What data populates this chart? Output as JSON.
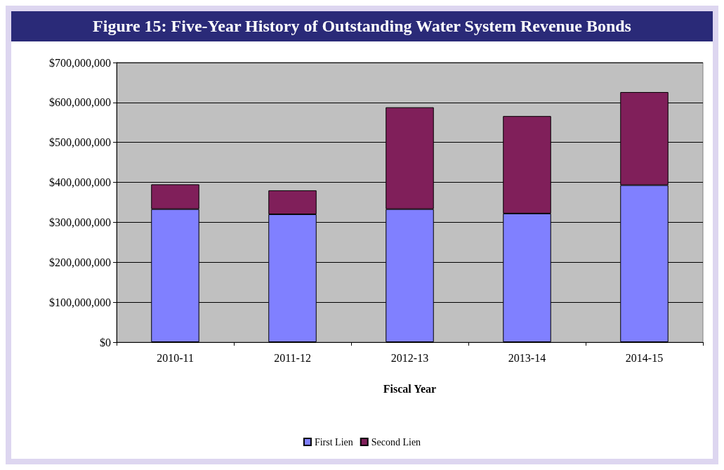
{
  "chart_data": {
    "type": "bar",
    "title": "Figure 15: Five-Year History of Outstanding Water System Revenue Bonds",
    "xlabel": "Fiscal Year",
    "categories": [
      "2010-11",
      "2011-12",
      "2012-13",
      "2013-14",
      "2014-15"
    ],
    "stacked": true,
    "series": [
      {
        "name": "First Lien",
        "color": "#8080ff",
        "values": [
          333000000,
          320000000,
          333000000,
          322000000,
          393000000
        ]
      },
      {
        "name": "Second Lien",
        "color": "#801f5a",
        "values": [
          62000000,
          60000000,
          255000000,
          244000000,
          233000000
        ]
      }
    ],
    "ylim": [
      0,
      700000000
    ],
    "yticks": [
      {
        "value": 0,
        "label": "$0"
      },
      {
        "value": 100000000,
        "label": "$100,000,000"
      },
      {
        "value": 200000000,
        "label": "$200,000,000"
      },
      {
        "value": 300000000,
        "label": "$300,000,000"
      },
      {
        "value": 400000000,
        "label": "$400,000,000"
      },
      {
        "value": 500000000,
        "label": "$500,000,000"
      },
      {
        "value": 600000000,
        "label": "$600,000,000"
      },
      {
        "value": 700000000,
        "label": "$700,000,000"
      }
    ],
    "grid": "y",
    "legend": "bottom"
  }
}
